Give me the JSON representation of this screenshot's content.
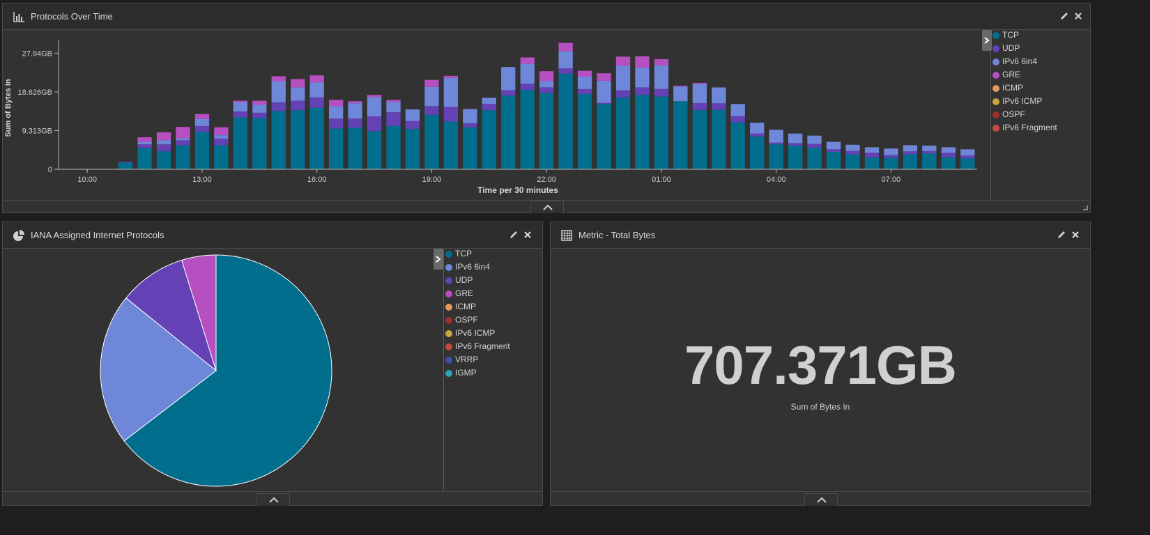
{
  "colors": {
    "TCP": "#006e8c",
    "UDP": "#6441b4",
    "IPv6 6in4": "#6f87d8",
    "GRE": "#b64fc0",
    "ICMP": "#e69a5a",
    "IPv6 ICMP": "#c8a83c",
    "OSPF": "#a0302c",
    "IPv6 Fragment": "#c24d3e",
    "VRRP": "#3b4fb0",
    "IGMP": "#2ea3ba"
  },
  "panel_top": {
    "title": "Protocols Over Time",
    "icon": "bar-chart-icon",
    "legend": [
      "TCP",
      "UDP",
      "IPv6 6in4",
      "GRE",
      "ICMP",
      "IPv6 ICMP",
      "OSPF",
      "IPv6 Fragment"
    ]
  },
  "panel_pie": {
    "title": "IANA Assigned Internet Protocols",
    "icon": "pie-chart-icon",
    "legend": [
      "TCP",
      "IPv6 6in4",
      "UDP",
      "GRE",
      "ICMP",
      "OSPF",
      "IPv6 ICMP",
      "IPv6 Fragment",
      "VRRP",
      "IGMP"
    ]
  },
  "panel_metric": {
    "title": "Metric - Total Bytes",
    "icon": "table-grid-icon",
    "value": "707.371GB",
    "label": "Sum of Bytes In"
  },
  "chart_data": [
    {
      "type": "bar",
      "stacked": true,
      "xlabel": "Time per 30 minutes",
      "ylabel": "Sum of Bytes In",
      "ylim": [
        0,
        29.5
      ],
      "y_ticks": [
        0,
        9.313,
        18.626,
        27.94
      ],
      "y_tick_labels": [
        "0",
        "9.313GB",
        "18.626GB",
        "27.94GB"
      ],
      "x_tick_labels": [
        "10:00",
        "13:00",
        "16:00",
        "19:00",
        "22:00",
        "01:00",
        "04:00",
        "07:00"
      ],
      "x_tick_index": [
        1,
        7,
        13,
        19,
        25,
        31,
        37,
        43
      ],
      "categories": [
        "09:30",
        "10:00",
        "10:30",
        "11:00",
        "11:30",
        "12:00",
        "12:30",
        "13:00",
        "13:30",
        "14:00",
        "14:30",
        "15:00",
        "15:30",
        "16:00",
        "16:30",
        "17:00",
        "17:30",
        "18:00",
        "18:30",
        "19:00",
        "19:30",
        "20:00",
        "20:30",
        "21:00",
        "21:30",
        "22:00",
        "22:30",
        "23:00",
        "23:30",
        "00:00",
        "00:30",
        "01:00",
        "01:30",
        "02:00",
        "02:30",
        "03:00",
        "03:30",
        "04:00",
        "04:30",
        "05:00",
        "05:30",
        "06:00",
        "06:30",
        "07:00",
        "07:30",
        "08:00",
        "08:30",
        "09:00"
      ],
      "series": [
        {
          "name": "TCP",
          "values": [
            0,
            0,
            0,
            1.6,
            5.1,
            4.3,
            5.8,
            9.0,
            5.8,
            12.5,
            12.3,
            14.0,
            14.2,
            14.8,
            9.8,
            10.0,
            9.2,
            10.4,
            9.7,
            13.1,
            11.5,
            10.1,
            14.2,
            17.7,
            19.1,
            18.4,
            23.0,
            18.1,
            15.7,
            17.3,
            17.9,
            17.5,
            16.4,
            14.2,
            14.3,
            11.3,
            7.9,
            6.0,
            5.7,
            5.2,
            4.2,
            3.6,
            2.8,
            2.8,
            3.6,
            3.8,
            2.9,
            2.6
          ]
        },
        {
          "name": "UDP",
          "values": [
            0,
            0,
            0,
            0.2,
            0.9,
            1.7,
            1.2,
            1.4,
            1.6,
            1.4,
            1.3,
            2.1,
            2.3,
            2.5,
            2.4,
            2.2,
            3.5,
            3.3,
            1.9,
            2.1,
            3.5,
            1.0,
            1.5,
            1.3,
            1.5,
            1.3,
            1.3,
            1.2,
            0.3,
            1.7,
            1.8,
            1.8,
            0,
            1.7,
            1.6,
            1.5,
            0.7,
            0.4,
            0.6,
            0.9,
            0.6,
            0.8,
            1.2,
            0.6,
            0.7,
            0.6,
            1.1,
            0.7
          ]
        },
        {
          "name": "IPv6 6in4",
          "values": [
            0,
            0,
            0,
            0,
            0.6,
            1.0,
            0.5,
            1.7,
            0.8,
            2.2,
            1.9,
            5.1,
            3.2,
            3.6,
            3.0,
            3.7,
            4.7,
            2.5,
            2.8,
            4.6,
            7.0,
            3.4,
            1.5,
            5.6,
            4.8,
            1.5,
            4.1,
            3.0,
            5.3,
            5.9,
            4.7,
            5.7,
            3.5,
            4.6,
            3.8,
            2.9,
            2.6,
            3.1,
            2.3,
            2.0,
            1.8,
            1.5,
            1.3,
            1.6,
            1.5,
            1.3,
            1.3,
            1.5
          ]
        },
        {
          "name": "GRE",
          "values": [
            0,
            0,
            0,
            0,
            1.1,
            1.9,
            2.7,
            1.2,
            1.9,
            0.4,
            1.0,
            1.2,
            2.0,
            1.7,
            1.5,
            0.5,
            0.5,
            0.5,
            0,
            1.7,
            0.5,
            0,
            0,
            0,
            1.5,
            2.4,
            2.0,
            1.4,
            1.8,
            2.2,
            2.8,
            1.5,
            0.2,
            0.3,
            0,
            0,
            0,
            0,
            0,
            0,
            0,
            0,
            0,
            0,
            0,
            0,
            0,
            0
          ]
        }
      ]
    },
    {
      "type": "pie",
      "categories": [
        "TCP",
        "IPv6 6in4",
        "UDP",
        "GRE",
        "ICMP",
        "OSPF",
        "IPv6 ICMP",
        "IPv6 Fragment",
        "VRRP",
        "IGMP"
      ],
      "values": [
        64.6,
        21.2,
        9.4,
        4.8,
        0,
        0,
        0,
        0,
        0,
        0
      ]
    }
  ]
}
